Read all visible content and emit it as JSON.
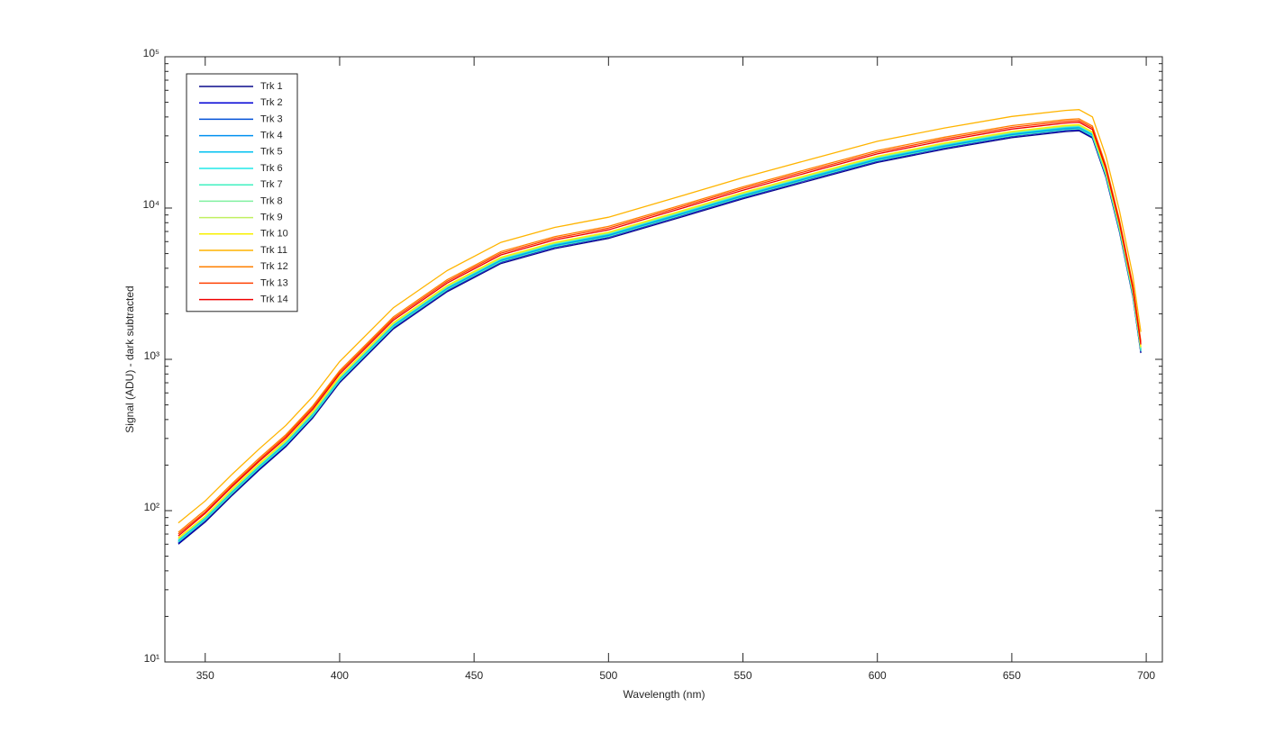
{
  "chart_data": {
    "type": "line",
    "x_label": "Wavelength (nm)",
    "y_label": "Signal (ADU) - dark subtracted",
    "xlim": [
      335,
      706
    ],
    "ylim": [
      10,
      100000
    ],
    "y_scale": "log",
    "xticks": [
      350,
      400,
      450,
      500,
      550,
      600,
      650,
      700
    ],
    "yticks": [
      {
        "value": 10,
        "label": "10¹"
      },
      {
        "value": 100,
        "label": "10²"
      },
      {
        "value": 1000,
        "label": "10³"
      },
      {
        "value": 10000,
        "label": "10⁴"
      },
      {
        "value": 100000,
        "label": "10⁵"
      }
    ],
    "legend": "upper left",
    "x": [
      340,
      350,
      360,
      370,
      380,
      390,
      400,
      420,
      440,
      460,
      480,
      500,
      525,
      550,
      575,
      600,
      625,
      650,
      670,
      675,
      680,
      685,
      690,
      695,
      698
    ],
    "series": [
      {
        "name": "Trk 1",
        "color": "#0a0a8c",
        "values": [
          60,
          84,
          126,
          185,
          265,
          410,
          700,
          1590,
          2800,
          4300,
          5400,
          6300,
          8500,
          11500,
          15200,
          20000,
          24500,
          29200,
          32000,
          32400,
          29000,
          16000,
          7000,
          2600,
          1100
        ]
      },
      {
        "name": "Trk 2",
        "color": "#0000d4",
        "values": [
          61,
          86,
          129,
          189,
          270,
          418,
          714,
          1622,
          2856,
          4386,
          5508,
          6426,
          8670,
          11730,
          15504,
          20400,
          24990,
          29784,
          32640,
          33048,
          29580,
          16320,
          7140,
          2652,
          1122
        ]
      },
      {
        "name": "Trk 3",
        "color": "#0050d8",
        "values": [
          62,
          87,
          131,
          192,
          276,
          426,
          728,
          1654,
          2912,
          4472,
          5616,
          6552,
          8840,
          11960,
          15808,
          20800,
          25480,
          30368,
          33280,
          33696,
          30160,
          16640,
          7280,
          2704,
          1144
        ]
      },
      {
        "name": "Trk 4",
        "color": "#0090f0",
        "values": [
          63,
          88,
          132,
          194,
          278,
          431,
          735,
          1670,
          2940,
          4515,
          5670,
          6615,
          8925,
          12075,
          15960,
          21000,
          25725,
          30660,
          33600,
          34020,
          30450,
          16800,
          7350,
          2730,
          1155
        ]
      },
      {
        "name": "Trk 5",
        "color": "#00c0f0",
        "values": [
          64,
          89,
          134,
          196,
          281,
          435,
          742,
          1685,
          2968,
          4558,
          5724,
          6678,
          9010,
          12190,
          16112,
          21200,
          25970,
          30952,
          33920,
          34344,
          30740,
          16960,
          7420,
          2756,
          1166
        ]
      },
      {
        "name": "Trk 6",
        "color": "#20e8e8",
        "values": [
          64,
          90,
          135,
          198,
          284,
          439,
          749,
          1701,
          2996,
          4601,
          5778,
          6741,
          9095,
          12305,
          16264,
          21400,
          26215,
          31244,
          34240,
          34668,
          31030,
          17120,
          7490,
          2782,
          1177
        ]
      },
      {
        "name": "Trk 7",
        "color": "#40f0c0",
        "values": [
          62,
          87,
          130,
          191,
          273,
          422,
          721,
          1638,
          2884,
          4429,
          5562,
          6489,
          8755,
          11845,
          15656,
          20600,
          25235,
          30076,
          32960,
          33372,
          29870,
          16480,
          7210,
          2678,
          1133
        ]
      },
      {
        "name": "Trk 8",
        "color": "#80f0a0",
        "values": [
          65,
          91,
          136,
          200,
          286,
          443,
          756,
          1717,
          3024,
          4644,
          5832,
          6804,
          9180,
          12420,
          16416,
          21600,
          26460,
          31536,
          34560,
          34992,
          31320,
          17280,
          7560,
          2808,
          1188
        ]
      },
      {
        "name": "Trk 9",
        "color": "#c0f060",
        "values": [
          65,
          92,
          137,
          202,
          289,
          447,
          763,
          1733,
          3052,
          4687,
          5886,
          6867,
          9265,
          12535,
          16568,
          21800,
          26705,
          31828,
          34880,
          35316,
          31610,
          17440,
          7630,
          2834,
          1199
        ]
      },
      {
        "name": "Trk 10",
        "color": "#f8f000",
        "values": [
          66,
          92,
          139,
          204,
          292,
          451,
          770,
          1749,
          3080,
          4730,
          5940,
          6930,
          9350,
          12650,
          16720,
          22000,
          26950,
          32120,
          35200,
          35640,
          31900,
          17600,
          7700,
          2860,
          1210
        ]
      },
      {
        "name": "Trk 11",
        "color": "#ffb400",
        "values": [
          83,
          116,
          174,
          255,
          366,
          566,
          966,
          2194,
          3864,
          5934,
          7452,
          8694,
          11730,
          15870,
          20976,
          27600,
          33810,
          40296,
          44160,
          44712,
          40020,
          22080,
          9660,
          3588,
          1518
        ]
      },
      {
        "name": "Trk 12",
        "color": "#ff8000",
        "values": [
          72,
          101,
          151,
          222,
          318,
          492,
          840,
          1908,
          3360,
          5160,
          6480,
          7560,
          10200,
          13800,
          18240,
          24000,
          29400,
          35040,
          38400,
          38880,
          34800,
          19200,
          8400,
          3120,
          1320
        ]
      },
      {
        "name": "Trk 13",
        "color": "#ff4000",
        "values": [
          70,
          98,
          147,
          216,
          310,
          480,
          819,
          1860,
          3276,
          5031,
          6318,
          7371,
          9945,
          13455,
          17784,
          23400,
          28665,
          34164,
          37440,
          37908,
          33930,
          18720,
          8190,
          3042,
          1287
        ]
      },
      {
        "name": "Trk 14",
        "color": "#f00000",
        "values": [
          68,
          96,
          144,
          211,
          302,
          467,
          798,
          1813,
          3192,
          4902,
          6156,
          7182,
          9690,
          13110,
          17328,
          22800,
          27930,
          33288,
          36480,
          36936,
          33060,
          18240,
          7980,
          2964,
          1254
        ]
      }
    ]
  }
}
